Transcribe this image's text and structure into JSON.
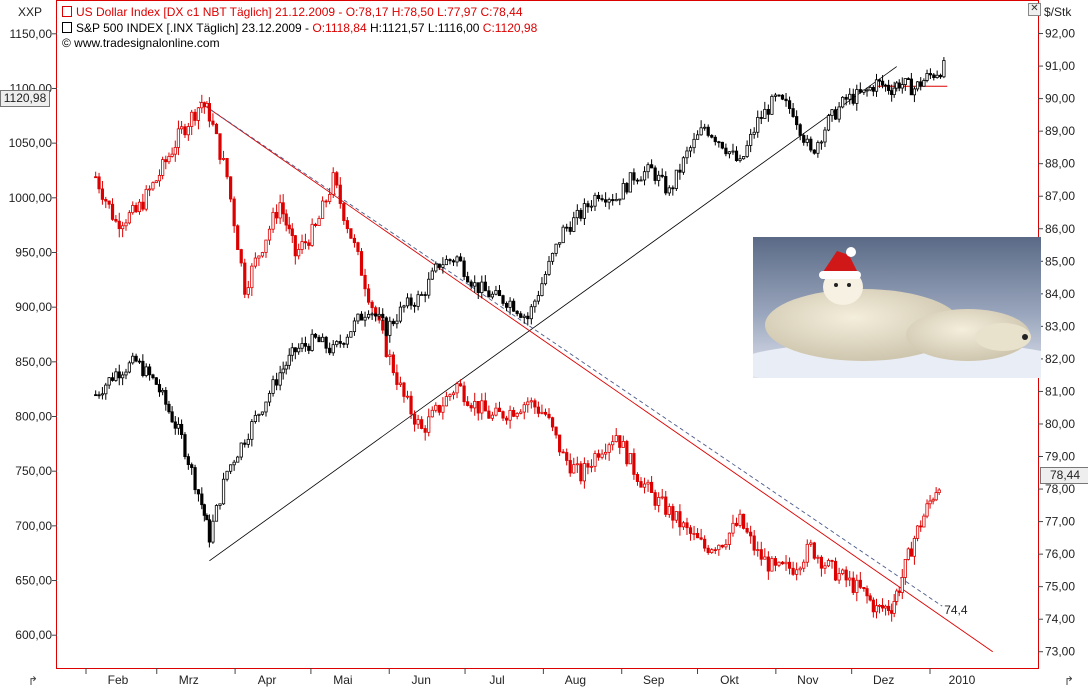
{
  "header": {
    "symbol_left": "XXP",
    "symbol_right": "$/Stk",
    "close_glyph": "✕",
    "line1_name": "US Dollar Index [DX c1 NBT  Täglich]",
    "line1_rest": "21.12.2009 - O:78,17 H:78,50 L:77,97 C:78,44",
    "line2_name": "S&P 500 INDEX [.INX  Täglich]",
    "line2_date": "23.12.2009 -",
    "line2_open": "O:1118,84",
    "line2_mid": "H:1121,57 L:1116,00",
    "line2_close": "C:1120,98",
    "line3": "© www.tradesignalonline.com"
  },
  "last_value_tags": {
    "left": "1120,98",
    "right": "78,44"
  },
  "annotation_level": "74,4",
  "colors": {
    "usd": "#dd0000",
    "spx": "#000000",
    "frame": "#dd0000",
    "grid": "#ffffff"
  },
  "chart_data": [
    {
      "type": "line",
      "title": "US Dollar Index [DX c1 NBT Täglich]",
      "axis": "right",
      "ylabel": "$/Stk",
      "ylim": [
        72.5,
        93.0
      ],
      "yticks": [
        "92,00",
        "91,00",
        "90,00",
        "89,00",
        "88,00",
        "87,00",
        "86,00",
        "85,00",
        "84,00",
        "83,00",
        "82,00",
        "81,00",
        "80,00",
        "79,00",
        "78,00",
        "77,00",
        "76,00",
        "75,00",
        "74,00",
        "73,00"
      ],
      "x": [
        "2009-01-20",
        "2009-01-28",
        "2009-02-05",
        "2009-02-13",
        "2009-02-23",
        "2009-03-03",
        "2009-03-06",
        "2009-03-13",
        "2009-03-20",
        "2009-03-27",
        "2009-04-03",
        "2009-04-09",
        "2009-04-17",
        "2009-04-24",
        "2009-05-01",
        "2009-05-08",
        "2009-05-15",
        "2009-05-22",
        "2009-05-29",
        "2009-06-05",
        "2009-06-12",
        "2009-06-19",
        "2009-06-26",
        "2009-07-03",
        "2009-07-10",
        "2009-07-17",
        "2009-07-24",
        "2009-07-31",
        "2009-08-07",
        "2009-08-14",
        "2009-08-21",
        "2009-08-28",
        "2009-09-04",
        "2009-09-11",
        "2009-09-18",
        "2009-09-25",
        "2009-10-02",
        "2009-10-09",
        "2009-10-16",
        "2009-10-23",
        "2009-10-30",
        "2009-11-06",
        "2009-11-13",
        "2009-11-20",
        "2009-11-25",
        "2009-12-01",
        "2009-12-04",
        "2009-12-10",
        "2009-12-15",
        "2009-12-21"
      ],
      "series": [
        {
          "name": "US Dollar Index [DX c1 NBT Täglich]",
          "values": [
            87.6,
            86.2,
            86.5,
            87.5,
            89.0,
            89.9,
            89.5,
            87.6,
            84.2,
            85.5,
            86.8,
            85.2,
            86.0,
            87.5,
            85.8,
            84.0,
            82.3,
            80.8,
            79.8,
            80.5,
            81.2,
            80.6,
            80.2,
            80.4,
            80.7,
            80.3,
            79.0,
            78.4,
            79.2,
            79.7,
            78.6,
            77.8,
            77.3,
            76.7,
            76.2,
            76.4,
            77.0,
            76.0,
            75.5,
            75.6,
            76.2,
            75.6,
            75.2,
            74.8,
            74.3,
            74.4,
            75.0,
            76.5,
            77.4,
            78.44
          ]
        }
      ]
    },
    {
      "type": "line",
      "title": "S&P 500 INDEX [.INX Täglich]",
      "axis": "left",
      "ylim": [
        570,
        1180
      ],
      "yticks": [
        "1150,00",
        "1100,00",
        "1050,00",
        "1000,00",
        "950,00",
        "900,00",
        "850,00",
        "800,00",
        "750,00",
        "700,00",
        "650,00",
        "600,00"
      ],
      "x": [
        "2009-01-20",
        "2009-01-28",
        "2009-02-05",
        "2009-02-13",
        "2009-02-23",
        "2009-03-03",
        "2009-03-06",
        "2009-03-13",
        "2009-03-20",
        "2009-03-27",
        "2009-04-03",
        "2009-04-09",
        "2009-04-17",
        "2009-04-24",
        "2009-05-01",
        "2009-05-08",
        "2009-05-15",
        "2009-05-22",
        "2009-05-29",
        "2009-06-05",
        "2009-06-12",
        "2009-06-19",
        "2009-06-26",
        "2009-07-03",
        "2009-07-10",
        "2009-07-17",
        "2009-07-24",
        "2009-07-31",
        "2009-08-07",
        "2009-08-14",
        "2009-08-21",
        "2009-08-28",
        "2009-09-04",
        "2009-09-11",
        "2009-09-18",
        "2009-09-25",
        "2009-10-02",
        "2009-10-09",
        "2009-10-16",
        "2009-10-23",
        "2009-10-30",
        "2009-11-06",
        "2009-11-13",
        "2009-11-20",
        "2009-11-25",
        "2009-12-01",
        "2009-12-04",
        "2009-12-10",
        "2009-12-15",
        "2009-12-23"
      ],
      "series": [
        {
          "name": "S&P 500 INDEX [.INX Täglich]",
          "values": [
            820,
            840,
            850,
            830,
            780,
            720,
            690,
            750,
            780,
            810,
            840,
            860,
            870,
            860,
            880,
            900,
            880,
            900,
            910,
            940,
            945,
            920,
            910,
            905,
            890,
            930,
            970,
            985,
            1005,
            1000,
            1020,
            1025,
            1005,
            1040,
            1065,
            1050,
            1030,
            1070,
            1090,
            1080,
            1040,
            1070,
            1090,
            1095,
            1105,
            1100,
            1105,
            1100,
            1110,
            1120.98
          ]
        }
      ]
    }
  ],
  "trendlines": {
    "spx_support": {
      "from": [
        "2009-03-06",
        668
      ],
      "to": [
        "2009-12-03",
        1120
      ]
    },
    "usd_resistance_solid": {
      "from": [
        "2009-03-02",
        89.9
      ],
      "to": [
        "2010-01-10",
        73.0
      ]
    },
    "usd_resistance_dashed": {
      "from": [
        "2009-03-02",
        89.9
      ],
      "to": [
        "2009-12-21",
        74.4
      ]
    },
    "spx_high_level": {
      "from": [
        "2009-11-25",
        1102
      ],
      "to": [
        "2009-12-23",
        1102
      ]
    }
  },
  "x_axis": {
    "labels": [
      "Feb",
      "Mrz",
      "Apr",
      "Mai",
      "Jun",
      "Jul",
      "Aug",
      "Sep",
      "Okt",
      "Nov",
      "Dez",
      "2010"
    ],
    "dates": [
      "2009-02-01",
      "2009-03-01",
      "2009-04-01",
      "2009-05-01",
      "2009-06-01",
      "2009-07-01",
      "2009-08-01",
      "2009-09-01",
      "2009-10-01",
      "2009-11-01",
      "2009-12-01",
      "2010-01-01"
    ]
  },
  "image_icon": "polar-bear-santa-hat-photo",
  "corner_icons": [
    "arrow-up-right-icon",
    "arrow-up-right-icon"
  ]
}
